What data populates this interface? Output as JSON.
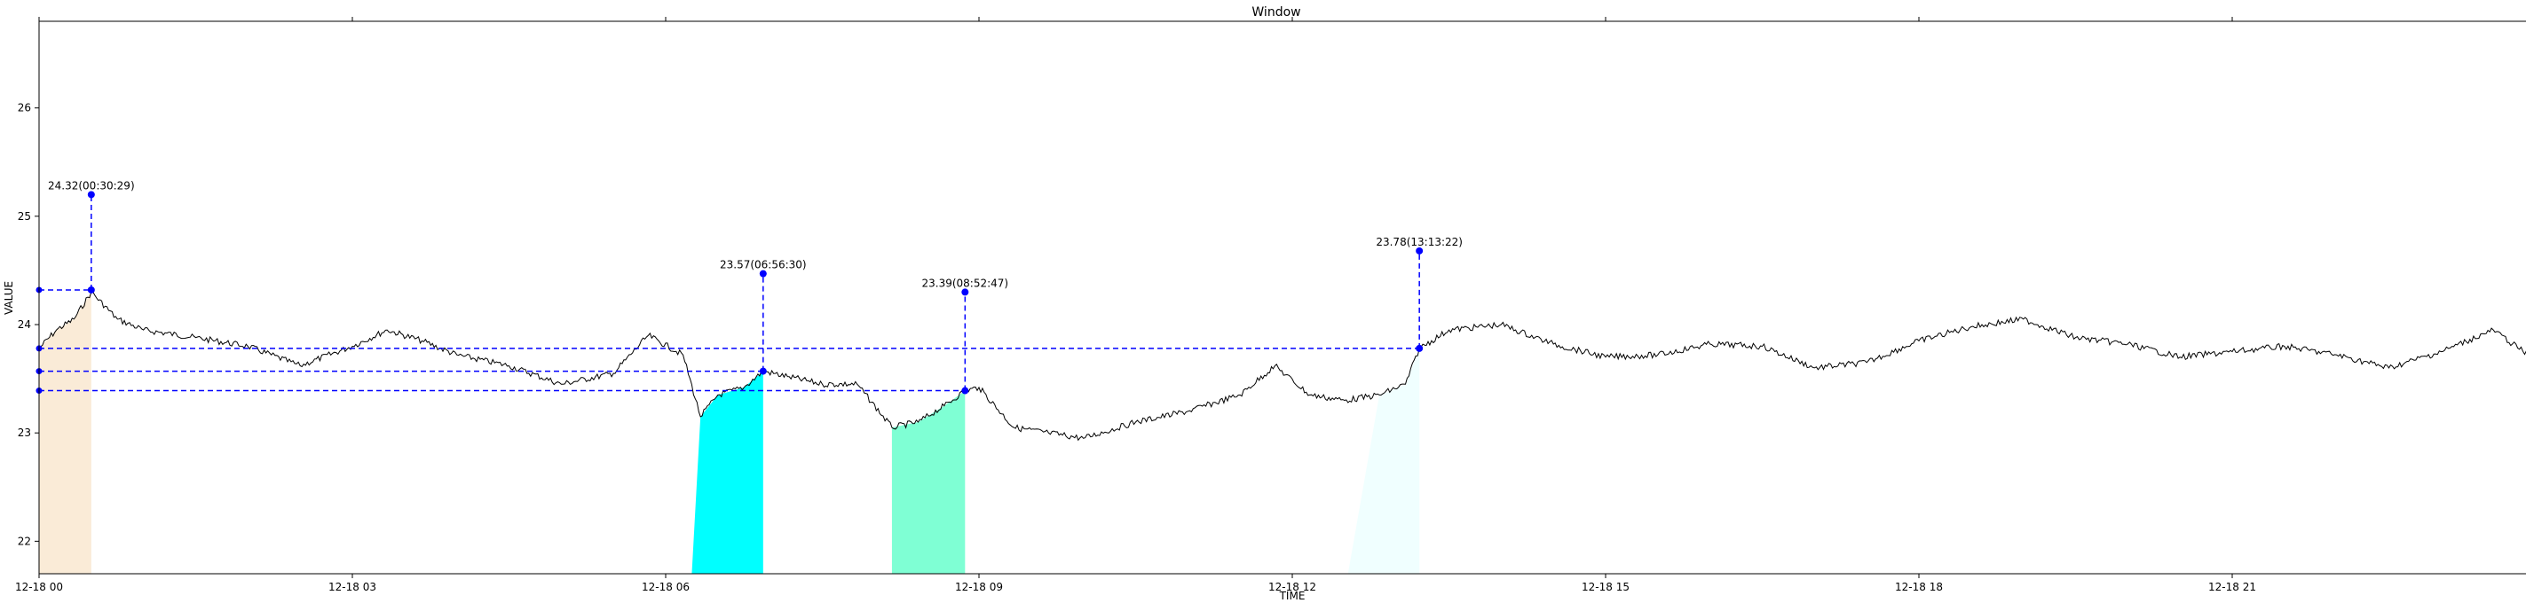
{
  "chart_data": {
    "type": "line",
    "title": "Window",
    "xlabel": "TIME",
    "ylabel": "VALUE",
    "ylim": [
      21.7,
      26.8
    ],
    "xlim": [
      "12-18 00:00",
      "12-19 00:00"
    ],
    "grid": false,
    "x_ticks": [
      "12-18 00",
      "12-18 03",
      "12-18 06",
      "12-18 09",
      "12-18 12",
      "12-18 15",
      "12-18 18",
      "12-18 21"
    ],
    "y_ticks": [
      22,
      23,
      24,
      25,
      26
    ],
    "series": [
      {
        "color": "#000000",
        "points": [
          [
            "12-18 00:00",
            23.78
          ],
          [
            "12-18 00:10",
            23.95
          ],
          [
            "12-18 00:20",
            24.05
          ],
          [
            "12-18 00:30",
            24.3
          ],
          [
            "12-18 00:45",
            24.05
          ],
          [
            "12-18 01:00",
            23.95
          ],
          [
            "12-18 01:30",
            23.88
          ],
          [
            "12-18 02:00",
            23.8
          ],
          [
            "12-18 02:30",
            23.62
          ],
          [
            "12-18 03:00",
            23.8
          ],
          [
            "12-18 03:20",
            23.95
          ],
          [
            "12-18 03:40",
            23.85
          ],
          [
            "12-18 04:00",
            23.72
          ],
          [
            "12-18 04:30",
            23.62
          ],
          [
            "12-18 05:00",
            23.45
          ],
          [
            "12-18 05:30",
            23.55
          ],
          [
            "12-18 05:50",
            23.9
          ],
          [
            "12-18 06:10",
            23.72
          ],
          [
            "12-18 06:20",
            23.15
          ],
          [
            "12-18 06:30",
            23.35
          ],
          [
            "12-18 06:45",
            23.42
          ],
          [
            "12-18 06:56",
            23.57
          ],
          [
            "12-18 07:10",
            23.52
          ],
          [
            "12-18 07:30",
            23.45
          ],
          [
            "12-18 07:50",
            23.45
          ],
          [
            "12-18 08:10",
            23.05
          ],
          [
            "12-18 08:25",
            23.1
          ],
          [
            "12-18 08:40",
            23.25
          ],
          [
            "12-18 08:52",
            23.39
          ],
          [
            "12-18 09:00",
            23.42
          ],
          [
            "12-18 09:20",
            23.05
          ],
          [
            "12-18 09:40",
            23.0
          ],
          [
            "12-18 10:00",
            22.95
          ],
          [
            "12-18 10:30",
            23.1
          ],
          [
            "12-18 11:00",
            23.2
          ],
          [
            "12-18 11:30",
            23.35
          ],
          [
            "12-18 11:50",
            23.62
          ],
          [
            "12-18 12:10",
            23.35
          ],
          [
            "12-18 12:30",
            23.3
          ],
          [
            "12-18 12:50",
            23.35
          ],
          [
            "12-18 13:05",
            23.45
          ],
          [
            "12-18 13:13",
            23.78
          ],
          [
            "12-18 13:30",
            23.95
          ],
          [
            "12-18 14:00",
            24.0
          ],
          [
            "12-18 14:30",
            23.82
          ],
          [
            "12-18 15:00",
            23.7
          ],
          [
            "12-18 15:30",
            23.72
          ],
          [
            "12-18 16:00",
            23.82
          ],
          [
            "12-18 16:30",
            23.8
          ],
          [
            "12-18 17:00",
            23.6
          ],
          [
            "12-18 17:30",
            23.65
          ],
          [
            "12-18 18:00",
            23.85
          ],
          [
            "12-18 18:30",
            23.98
          ],
          [
            "12-18 19:00",
            24.05
          ],
          [
            "12-18 19:30",
            23.88
          ],
          [
            "12-18 20:00",
            23.82
          ],
          [
            "12-18 20:30",
            23.7
          ],
          [
            "12-18 21:00",
            23.75
          ],
          [
            "12-18 21:30",
            23.8
          ],
          [
            "12-18 22:00",
            23.72
          ],
          [
            "12-18 22:30",
            23.6
          ],
          [
            "12-18 23:00",
            23.75
          ],
          [
            "12-18 23:30",
            23.95
          ],
          [
            "12-18 23:50",
            23.72
          ],
          [
            "12-19 00:00",
            23.68
          ]
        ]
      }
    ],
    "shaded_regions": [
      {
        "start": "12-18 00:00",
        "end": "12-18 00:30",
        "color": "#faebd7"
      },
      {
        "start": "12-18 06:15",
        "end": "12-18 06:56",
        "color": "#00ffff"
      },
      {
        "start": "12-18 08:10",
        "end": "12-18 08:52",
        "color": "#7fffd4"
      },
      {
        "start": "12-18 12:32",
        "end": "12-18 13:13",
        "color": "#f0ffff"
      }
    ],
    "annotations": [
      {
        "label": "24.32(00:30:29)",
        "time": "12-18 00:30",
        "value": 24.32
      },
      {
        "label": "23.57(06:56:30)",
        "time": "12-18 06:56",
        "value": 23.57
      },
      {
        "label": "23.39(08:52:47)",
        "time": "12-18 08:52",
        "value": 23.39
      },
      {
        "label": "23.78(13:13:22)",
        "time": "12-18 13:13",
        "value": 23.78
      }
    ],
    "annotation_color": "#0000ff"
  }
}
